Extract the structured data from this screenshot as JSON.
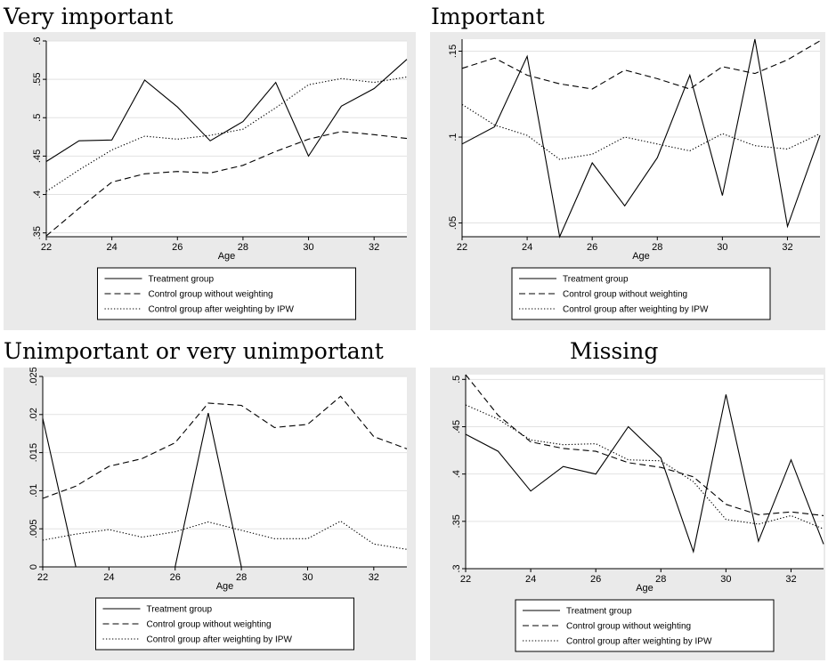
{
  "chart_data": [
    {
      "type": "line",
      "title": "Very important",
      "xlabel": "Age",
      "ylabel": "",
      "xlim": [
        22,
        33
      ],
      "ylim": [
        0.345,
        0.6
      ],
      "xticks": [
        22,
        24,
        26,
        28,
        30,
        32
      ],
      "xtick_labels": [
        "22",
        "24",
        "26",
        "28",
        "30",
        "32"
      ],
      "yticks": [
        0.35,
        0.4,
        0.45,
        0.5,
        0.55,
        0.6
      ],
      "ytick_labels": [
        ".35",
        ".4",
        ".45",
        ".5",
        ".55",
        ".6"
      ],
      "grid": true,
      "legend": "bottom",
      "x": [
        22,
        23,
        24,
        25,
        26,
        27,
        28,
        29,
        30,
        31,
        32,
        33
      ],
      "series": [
        {
          "name": "Treatment group",
          "style": "solid",
          "values": [
            0.443,
            0.47,
            0.471,
            0.549,
            0.514,
            0.47,
            0.495,
            0.546,
            0.45,
            0.515,
            0.538,
            0.576
          ]
        },
        {
          "name": "Control group without weighting",
          "style": "dashed",
          "values": [
            0.346,
            0.382,
            0.416,
            0.427,
            0.43,
            0.428,
            0.438,
            0.456,
            0.472,
            0.482,
            0.478,
            0.473
          ]
        },
        {
          "name": "Control group after weighting by IPW",
          "style": "dotted",
          "values": [
            0.404,
            0.432,
            0.458,
            0.476,
            0.472,
            0.477,
            0.485,
            0.513,
            0.543,
            0.551,
            0.546,
            0.553
          ]
        }
      ]
    },
    {
      "type": "line",
      "title": "Important",
      "xlabel": "Age",
      "ylabel": "",
      "xlim": [
        22,
        33
      ],
      "ylim": [
        0.042,
        0.157
      ],
      "xticks": [
        22,
        24,
        26,
        28,
        30,
        32
      ],
      "xtick_labels": [
        "22",
        "24",
        "26",
        "28",
        "30",
        "32"
      ],
      "yticks": [
        0.05,
        0.1,
        0.15
      ],
      "ytick_labels": [
        ".05",
        ".1",
        ".15"
      ],
      "grid": true,
      "legend": "bottom",
      "x": [
        22,
        23,
        24,
        25,
        26,
        27,
        28,
        29,
        30,
        31,
        32,
        33
      ],
      "series": [
        {
          "name": "Treatment group",
          "style": "solid",
          "values": [
            0.096,
            0.106,
            0.147,
            0.042,
            0.085,
            0.06,
            0.088,
            0.136,
            0.066,
            0.157,
            0.048,
            0.101
          ]
        },
        {
          "name": "Control group without weighting",
          "style": "dashed",
          "values": [
            0.14,
            0.146,
            0.136,
            0.131,
            0.128,
            0.139,
            0.134,
            0.128,
            0.141,
            0.137,
            0.145,
            0.156
          ]
        },
        {
          "name": "Control group after weighting by IPW",
          "style": "dotted",
          "values": [
            0.119,
            0.107,
            0.101,
            0.087,
            0.09,
            0.1,
            0.096,
            0.092,
            0.102,
            0.095,
            0.093,
            0.102
          ]
        }
      ]
    },
    {
      "type": "line",
      "title": "Unimportant or very unimportant",
      "xlabel": "Age",
      "ylabel": "",
      "xlim": [
        22,
        33
      ],
      "ylim": [
        0,
        0.025
      ],
      "xticks": [
        22,
        24,
        26,
        28,
        30,
        32
      ],
      "xtick_labels": [
        "22",
        "24",
        "26",
        "28",
        "30",
        "32"
      ],
      "yticks": [
        0,
        0.005,
        0.01,
        0.015,
        0.02,
        0.025
      ],
      "ytick_labels": [
        "0",
        ".005",
        ".01",
        ".015",
        ".02",
        ".025"
      ],
      "grid": true,
      "legend": "bottom",
      "x": [
        22,
        23,
        24,
        25,
        26,
        27,
        28,
        29,
        30,
        31,
        32,
        33
      ],
      "series": [
        {
          "name": "Treatment group",
          "style": "solid",
          "values": [
            0.0195,
            0,
            0,
            0,
            0,
            0.0202,
            0,
            0,
            0,
            0,
            0,
            0
          ]
        },
        {
          "name": "Control group without weighting",
          "style": "dashed",
          "values": [
            0.009,
            0.0106,
            0.0132,
            0.0142,
            0.0163,
            0.0215,
            0.0212,
            0.0183,
            0.0187,
            0.0224,
            0.0171,
            0.0155
          ]
        },
        {
          "name": "Control group after weighting by IPW",
          "style": "dotted",
          "values": [
            0.0035,
            0.0043,
            0.0049,
            0.0039,
            0.0046,
            0.0059,
            0.0048,
            0.0037,
            0.0037,
            0.006,
            0.003,
            0.0023
          ]
        }
      ]
    },
    {
      "type": "line",
      "title": "Missing",
      "xlabel": "Age",
      "ylabel": "",
      "xlim": [
        22,
        33
      ],
      "ylim": [
        0.3,
        0.505
      ],
      "xticks": [
        22,
        24,
        26,
        28,
        30,
        32
      ],
      "xtick_labels": [
        "22",
        "24",
        "26",
        "28",
        "30",
        "32"
      ],
      "yticks": [
        0.3,
        0.35,
        0.4,
        0.45,
        0.5
      ],
      "ytick_labels": [
        ".3",
        ".35",
        ".4",
        ".45",
        ".5"
      ],
      "grid": true,
      "legend": "bottom",
      "x": [
        22,
        23,
        24,
        25,
        26,
        27,
        28,
        29,
        30,
        31,
        32,
        33
      ],
      "series": [
        {
          "name": "Treatment group",
          "style": "solid",
          "values": [
            0.442,
            0.424,
            0.382,
            0.408,
            0.4,
            0.45,
            0.417,
            0.318,
            0.484,
            0.329,
            0.415,
            0.326
          ]
        },
        {
          "name": "Control group without weighting",
          "style": "dashed",
          "values": [
            0.505,
            0.462,
            0.434,
            0.427,
            0.424,
            0.412,
            0.407,
            0.397,
            0.368,
            0.357,
            0.36,
            0.356
          ]
        },
        {
          "name": "Control group after weighting by IPW",
          "style": "dotted",
          "values": [
            0.473,
            0.458,
            0.436,
            0.431,
            0.432,
            0.415,
            0.414,
            0.392,
            0.352,
            0.347,
            0.356,
            0.342
          ]
        }
      ]
    }
  ]
}
